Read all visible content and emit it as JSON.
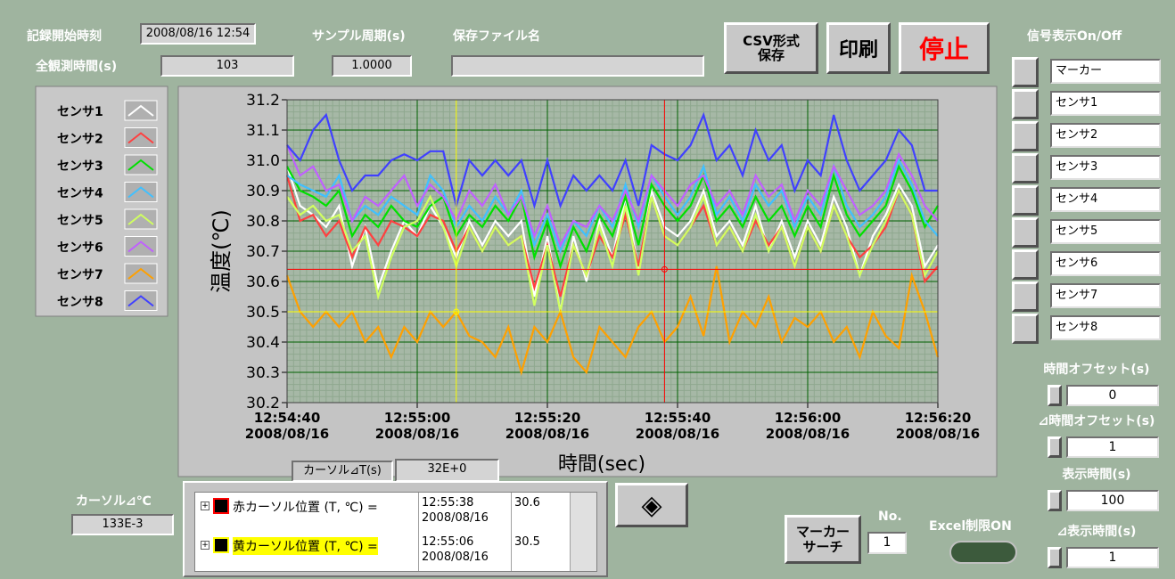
{
  "header": {
    "start_label": "記録開始時刻",
    "start_value": "2008/08/16 12:54",
    "total_label": "全観測時間(s)",
    "total_value": 103,
    "period_label": "サンプル周期(s)",
    "period_value": "1.0000",
    "file_label": "保存ファイル名"
  },
  "buttons": {
    "csv": [
      "CSV形式",
      "保存"
    ],
    "print": "印刷",
    "stop": "停止",
    "marker_search": [
      "マーカー",
      "サーチ"
    ]
  },
  "signal_panel": {
    "title": "信号表示On/Off",
    "items": [
      "マーカー",
      "センサ1",
      "センサ2",
      "センサ3",
      "センサ4",
      "センサ5",
      "センサ6",
      "センサ7",
      "センサ8"
    ]
  },
  "settings": [
    {
      "label": "時間オフセット(s)",
      "value": 0
    },
    {
      "label": "⊿時間オフセット(s)",
      "value": 1
    },
    {
      "label": "表示時間(s)",
      "value": 100
    },
    {
      "label": "⊿表示時間(s)",
      "value": 1
    }
  ],
  "excel": "Excel制限ON",
  "marker_no": {
    "label": "No.",
    "value": 1
  },
  "cursor_dt": {
    "label": "カーソル⊿T(s)",
    "value": "32E+0"
  },
  "cursor_dc": {
    "label": "カーソル⊿℃",
    "value": "133E-3"
  },
  "cursor_table": [
    {
      "label": "赤カーソル位置 (T, ℃) =",
      "time": "12:55:38",
      "date": "2008/08/16",
      "value": 30.6
    },
    {
      "label": "黄カーソル位置 (T, ℃) =",
      "time": "12:55:06",
      "date": "2008/08/16",
      "value": 30.5
    }
  ],
  "chart_data": {
    "type": "line",
    "x_label": "時間(sec)",
    "y_label": "温度(℃)",
    "x": [
      0,
      2,
      4,
      6,
      8,
      10,
      12,
      14,
      16,
      18,
      20,
      22,
      24,
      26,
      28,
      30,
      32,
      34,
      36,
      38,
      40,
      42,
      44,
      46,
      48,
      50,
      52,
      54,
      56,
      58,
      60,
      62,
      64,
      66,
      68,
      70,
      72,
      74,
      76,
      78,
      80,
      82,
      84,
      86,
      88,
      90,
      92,
      94,
      96,
      98,
      100
    ],
    "xlim": [
      0,
      100
    ],
    "xticks": [
      {
        "value": 0,
        "label": "12:54:40"
      },
      {
        "value": 20,
        "label": "12:55:00"
      },
      {
        "value": 40,
        "label": "12:55:20"
      },
      {
        "value": 60,
        "label": "12:55:40"
      },
      {
        "value": 80,
        "label": "12:56:00"
      },
      {
        "value": 100,
        "label": "12:56:20"
      }
    ],
    "xtick_dates": [
      "2008/08/16",
      "2008/08/16",
      "2008/08/16",
      "2008/08/16",
      "2008/08/16",
      "2008/08/16"
    ],
    "ylim": [
      30.2,
      31.2
    ],
    "yticks": [
      30.2,
      30.3,
      30.4,
      30.5,
      30.6,
      30.7,
      30.8,
      30.9,
      {
        "value": 31,
        "label": "31.0"
      },
      31.1,
      31.2
    ],
    "grid": true,
    "cursors": [
      {
        "color": "#ff0000",
        "x": 58,
        "y": 30.64
      },
      {
        "color": "#ffff00",
        "x": 26,
        "y": 30.5
      }
    ],
    "series": [
      {
        "name": "センサ1",
        "color": "#ffffff",
        "values": [
          30.98,
          30.85,
          30.82,
          30.78,
          30.85,
          30.65,
          30.78,
          30.58,
          30.7,
          30.8,
          30.75,
          30.85,
          30.78,
          30.68,
          30.8,
          30.72,
          30.8,
          30.75,
          30.8,
          30.55,
          30.75,
          30.5,
          30.75,
          30.6,
          30.8,
          30.68,
          30.88,
          30.64,
          30.9,
          30.78,
          30.75,
          30.8,
          30.9,
          30.75,
          30.8,
          30.72,
          30.85,
          30.7,
          30.8,
          30.68,
          30.8,
          30.72,
          30.88,
          30.78,
          30.62,
          30.75,
          30.82,
          30.92,
          30.85,
          30.65,
          30.72
        ]
      },
      {
        "name": "センサ2",
        "color": "#ff4040",
        "values": [
          30.95,
          30.8,
          30.82,
          30.75,
          30.8,
          30.68,
          30.78,
          30.72,
          30.8,
          30.78,
          30.75,
          30.82,
          30.8,
          30.7,
          30.78,
          30.7,
          30.78,
          30.72,
          30.75,
          30.58,
          30.72,
          30.55,
          30.72,
          30.62,
          30.75,
          30.68,
          30.82,
          30.65,
          30.88,
          30.75,
          30.72,
          30.78,
          30.85,
          30.72,
          30.78,
          30.7,
          30.8,
          30.72,
          30.78,
          30.65,
          30.78,
          30.7,
          30.85,
          30.75,
          30.68,
          30.72,
          30.78,
          30.9,
          30.82,
          30.6,
          30.65
        ]
      },
      {
        "name": "センサ3",
        "color": "#00e000",
        "values": [
          30.98,
          30.9,
          30.88,
          30.85,
          30.9,
          30.75,
          30.82,
          30.78,
          30.85,
          30.8,
          30.78,
          30.85,
          30.88,
          30.75,
          30.82,
          30.78,
          30.85,
          30.8,
          30.88,
          30.68,
          30.8,
          30.65,
          30.78,
          30.7,
          30.82,
          30.75,
          30.88,
          30.72,
          30.92,
          30.85,
          30.8,
          30.85,
          30.95,
          30.8,
          30.85,
          30.78,
          30.88,
          30.8,
          30.85,
          30.75,
          30.85,
          30.78,
          30.95,
          30.82,
          30.75,
          30.8,
          30.85,
          30.98,
          30.9,
          30.78,
          30.85
        ]
      },
      {
        "name": "センサ4",
        "color": "#40c0ff",
        "values": [
          30.95,
          30.92,
          30.9,
          30.88,
          30.95,
          30.8,
          30.85,
          30.82,
          30.88,
          30.85,
          30.82,
          30.95,
          30.9,
          30.78,
          30.85,
          30.8,
          30.88,
          30.82,
          30.9,
          30.72,
          30.82,
          30.7,
          30.8,
          30.75,
          30.85,
          30.78,
          30.92,
          30.78,
          30.95,
          30.88,
          30.82,
          30.88,
          30.98,
          30.82,
          30.88,
          30.8,
          30.92,
          30.85,
          30.9,
          30.78,
          30.88,
          30.82,
          30.98,
          30.85,
          30.78,
          30.82,
          30.88,
          31.0,
          30.92,
          30.8,
          30.75
        ]
      },
      {
        "name": "センサ5",
        "color": "#d0ff60",
        "values": [
          30.88,
          30.82,
          30.85,
          30.8,
          30.82,
          30.7,
          30.75,
          30.55,
          30.68,
          30.78,
          30.8,
          30.88,
          30.78,
          30.65,
          30.78,
          30.7,
          30.78,
          30.72,
          30.75,
          30.52,
          30.72,
          30.5,
          30.72,
          30.62,
          30.78,
          30.65,
          30.85,
          30.62,
          30.88,
          30.75,
          30.72,
          30.78,
          30.88,
          30.72,
          30.78,
          30.7,
          30.82,
          30.7,
          30.78,
          30.65,
          30.78,
          30.7,
          30.85,
          30.75,
          30.62,
          30.72,
          30.8,
          30.9,
          30.82,
          30.62,
          30.7
        ]
      },
      {
        "name": "センサ6",
        "color": "#c060ff",
        "values": [
          31.05,
          30.95,
          30.98,
          30.9,
          30.92,
          30.8,
          30.88,
          30.85,
          30.9,
          30.95,
          30.85,
          30.92,
          30.88,
          30.8,
          30.9,
          30.85,
          30.92,
          30.82,
          30.88,
          30.75,
          30.85,
          30.72,
          30.8,
          30.78,
          30.85,
          30.8,
          30.9,
          30.8,
          30.95,
          30.9,
          30.85,
          30.92,
          30.95,
          30.85,
          30.9,
          30.82,
          30.95,
          30.88,
          30.92,
          30.8,
          30.9,
          30.85,
          30.98,
          30.9,
          30.82,
          30.85,
          30.9,
          31.02,
          30.95,
          30.85,
          30.8
        ]
      },
      {
        "name": "センサ7",
        "color": "#ffa000",
        "values": [
          30.62,
          30.5,
          30.45,
          30.5,
          30.45,
          30.5,
          30.4,
          30.45,
          30.35,
          30.45,
          30.4,
          30.5,
          30.45,
          30.5,
          30.42,
          30.4,
          30.35,
          30.45,
          30.3,
          30.45,
          30.4,
          30.5,
          30.35,
          30.3,
          30.45,
          30.4,
          30.35,
          30.45,
          30.5,
          30.4,
          30.45,
          30.55,
          30.42,
          30.65,
          30.4,
          30.5,
          30.45,
          30.55,
          30.4,
          30.48,
          30.45,
          30.5,
          30.4,
          30.45,
          30.35,
          30.5,
          30.42,
          30.38,
          30.62,
          30.5,
          30.35
        ]
      },
      {
        "name": "センサ8",
        "color": "#4040ff",
        "values": [
          31.05,
          31.0,
          31.1,
          31.15,
          31.0,
          30.9,
          30.95,
          30.95,
          31.0,
          31.02,
          31.0,
          31.03,
          31.03,
          30.85,
          31.0,
          30.95,
          31.0,
          30.95,
          31.0,
          30.85,
          31.0,
          30.85,
          30.95,
          30.9,
          30.95,
          30.9,
          31.0,
          30.85,
          31.05,
          31.02,
          31.0,
          31.05,
          31.15,
          31.0,
          31.05,
          30.95,
          31.1,
          31.0,
          31.05,
          30.9,
          31.0,
          30.95,
          31.15,
          31.0,
          30.9,
          30.95,
          31.0,
          31.1,
          31.05,
          30.9,
          30.9
        ]
      }
    ]
  }
}
